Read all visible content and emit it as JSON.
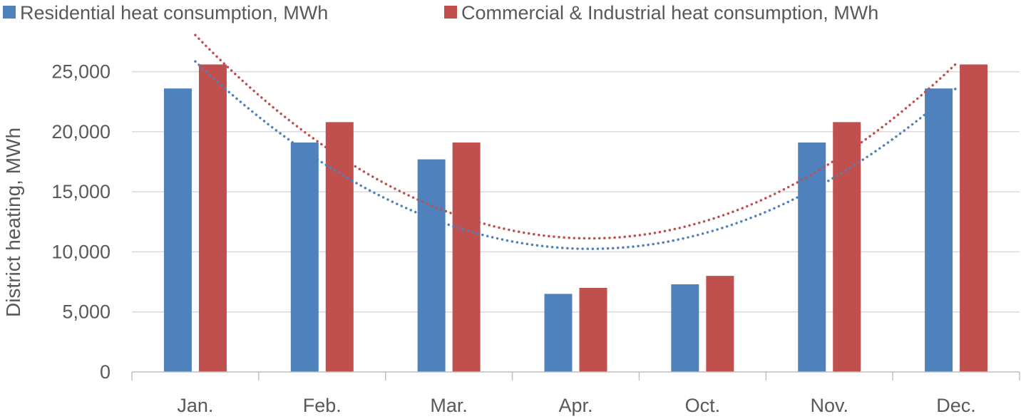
{
  "chart_data": {
    "type": "bar",
    "title": "",
    "xlabel": "",
    "ylabel": "District heating, MWh",
    "categories": [
      "Jan.",
      "Feb.",
      "Mar.",
      "Apr.",
      "Oct.",
      "Nov.",
      "Dec."
    ],
    "series": [
      {
        "name": "Residential heat consumption, MWh",
        "color": "#4F81BD",
        "values": [
          23600,
          19100,
          17700,
          6500,
          7300,
          19100,
          23600
        ]
      },
      {
        "name": "Commercial & Industrial heat consumption, MWh",
        "color": "#C0504D",
        "values": [
          25600,
          20800,
          19100,
          7000,
          8000,
          20800,
          25600
        ]
      }
    ],
    "trendlines": [
      {
        "series": "Residential heat consumption, MWh",
        "kind": "polynomial",
        "style": "dotted"
      },
      {
        "series": "Commercial & Industrial heat consumption, MWh",
        "kind": "polynomial",
        "style": "dotted"
      }
    ],
    "yticks": [
      "0",
      "5,000",
      "10,000",
      "15,000",
      "20,000",
      "25,000"
    ],
    "ylim": [
      0,
      28000
    ],
    "grid": true,
    "legend_position": "top-left"
  }
}
